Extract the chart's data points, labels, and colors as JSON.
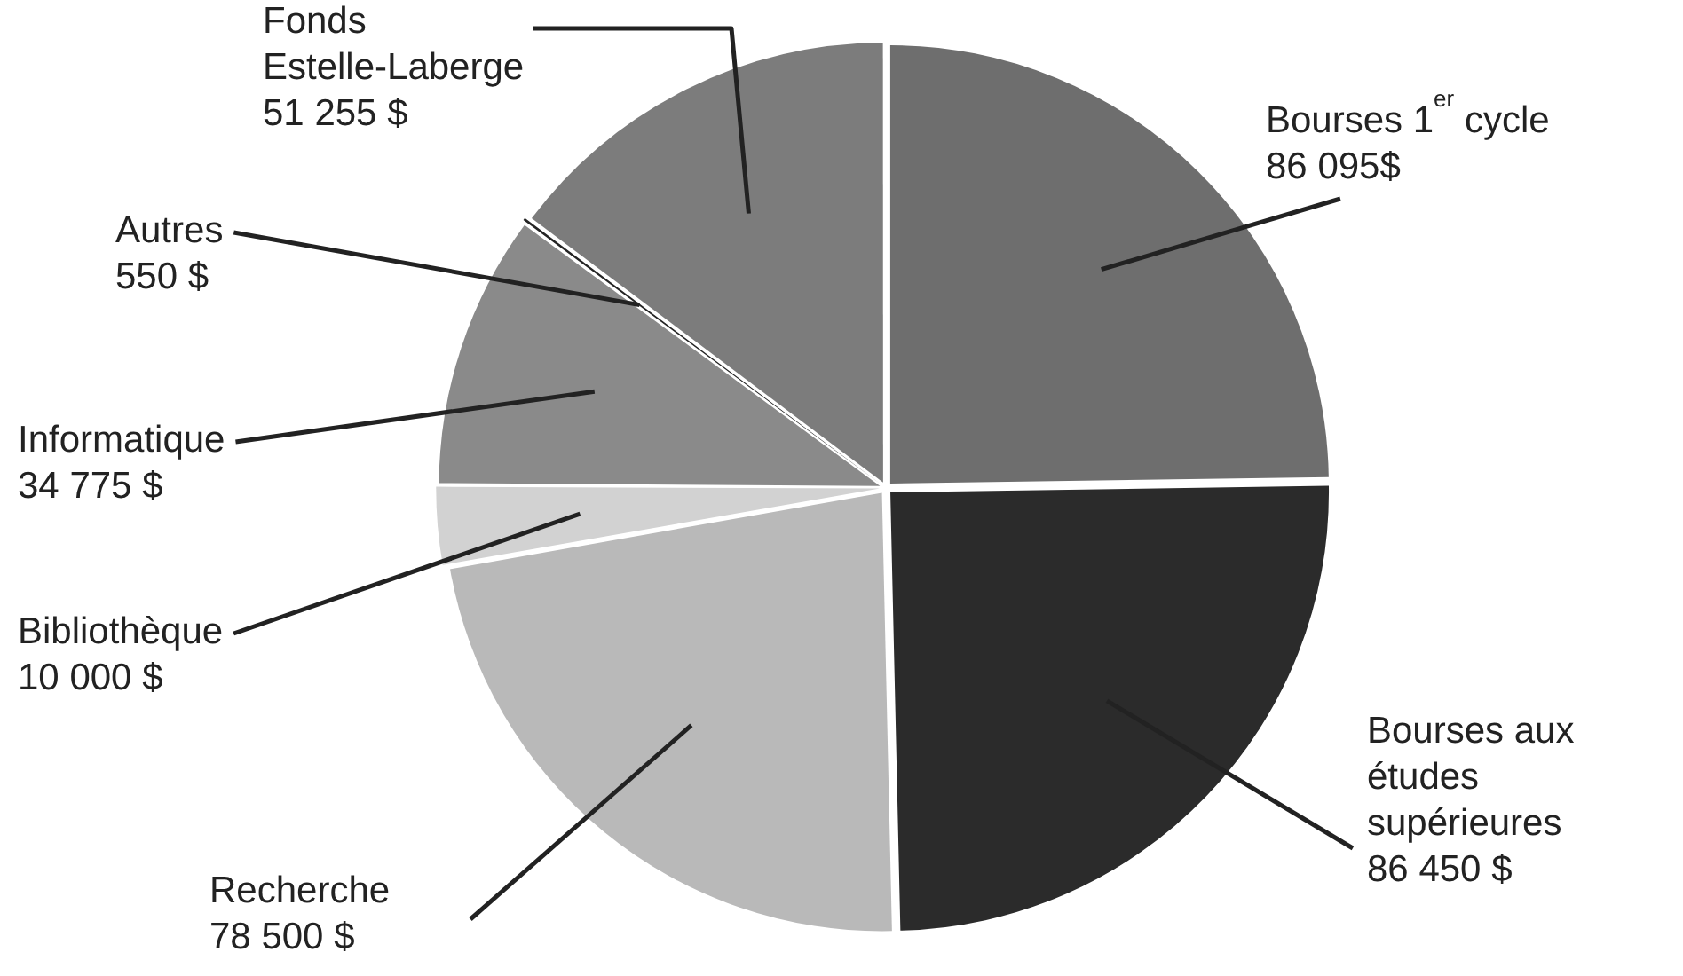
{
  "chart_data": {
    "type": "pie",
    "categories": [
      "Bourses 1$^{er}$ cycle",
      "Bourses aux études supérieures",
      "Recherche",
      "Bibliothèque",
      "Informatique",
      "Autres",
      "Fonds Estelle-Laberge"
    ],
    "values": [
      86095,
      86450,
      78500,
      10000,
      34775,
      550,
      51255
    ],
    "value_labels": [
      "86 095$",
      "86 450 $",
      "78 500 $",
      "10 000 $",
      "34 775 $",
      "550 $",
      "51 255 $"
    ],
    "colors": [
      "#6e6e6e",
      "#2b2b2b",
      "#b9b9b9",
      "#d2d2d2",
      "#8a8a8a",
      "#252525",
      "#7c7c7c"
    ],
    "legend": false
  }
}
